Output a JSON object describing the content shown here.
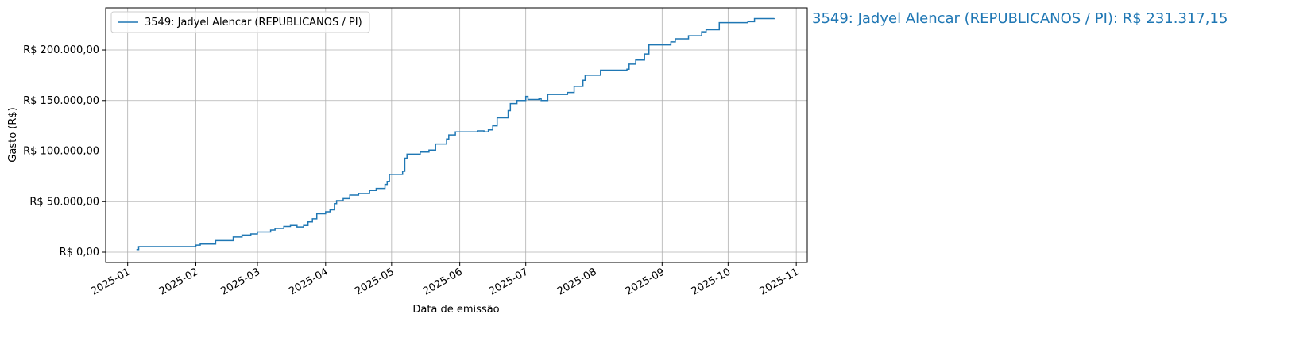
{
  "chart_data": {
    "type": "step",
    "xlabel": "Data de emissão",
    "ylabel": "Gasto (R$)",
    "annotation": "3549: Jadyel Alencar (REPUBLICANOS / PI): R$ 231.317,15",
    "grid": true,
    "legend": "upper left",
    "xlim": [
      "2024-12-22",
      "2025-11-06"
    ],
    "xticks": [
      "2025-01",
      "2025-02",
      "2025-03",
      "2025-04",
      "2025-05",
      "2025-06",
      "2025-07",
      "2025-08",
      "2025-09",
      "2025-10",
      "2025-11"
    ],
    "ylim": [
      -10200,
      241600
    ],
    "yticks": [
      {
        "value": 0,
        "label": "R$ 0,00"
      },
      {
        "value": 50000,
        "label": "R$ 50.000,00"
      },
      {
        "value": 100000,
        "label": "R$ 100.000,00"
      },
      {
        "value": 150000,
        "label": "R$ 150.000,00"
      },
      {
        "value": 200000,
        "label": "R$ 200.000,00"
      }
    ],
    "x": [
      "2025-01-05",
      "2025-01-06",
      "2025-02-01",
      "2025-02-03",
      "2025-02-10",
      "2025-02-18",
      "2025-02-22",
      "2025-02-26",
      "2025-03-01",
      "2025-03-07",
      "2025-03-09",
      "2025-03-13",
      "2025-03-16",
      "2025-03-19",
      "2025-03-22",
      "2025-03-24",
      "2025-03-26",
      "2025-03-28",
      "2025-04-01",
      "2025-04-03",
      "2025-04-05",
      "2025-04-06",
      "2025-04-09",
      "2025-04-12",
      "2025-04-16",
      "2025-04-21",
      "2025-04-24",
      "2025-04-28",
      "2025-04-29",
      "2025-04-30",
      "2025-05-06",
      "2025-05-07",
      "2025-05-08",
      "2025-05-14",
      "2025-05-18",
      "2025-05-21",
      "2025-05-26",
      "2025-05-27",
      "2025-05-30",
      "2025-06-09",
      "2025-06-12",
      "2025-06-14",
      "2025-06-16",
      "2025-06-18",
      "2025-06-23",
      "2025-06-24",
      "2025-06-27",
      "2025-07-01",
      "2025-07-02",
      "2025-07-07",
      "2025-07-08",
      "2025-07-11",
      "2025-07-20",
      "2025-07-23",
      "2025-07-27",
      "2025-07-28",
      "2025-08-04",
      "2025-08-16",
      "2025-08-17",
      "2025-08-20",
      "2025-08-24",
      "2025-08-26",
      "2025-09-05",
      "2025-09-07",
      "2025-09-13",
      "2025-09-19",
      "2025-09-21",
      "2025-09-27",
      "2025-10-10",
      "2025-10-13",
      "2025-10-22"
    ],
    "series": [
      {
        "name": "3549: Jadyel Alencar (REPUBLICANOS / PI)",
        "color": "#1f77b4",
        "values": [
          2500,
          5500,
          7000,
          8000,
          11500,
          15000,
          17000,
          18000,
          20000,
          22000,
          23500,
          25500,
          26500,
          25000,
          26500,
          30000,
          33000,
          38000,
          40000,
          42000,
          48000,
          51000,
          53000,
          56500,
          58000,
          61000,
          63000,
          67000,
          70000,
          77000,
          80000,
          93000,
          97000,
          99000,
          101000,
          107000,
          112000,
          116000,
          119000,
          120000,
          119000,
          121000,
          125000,
          133000,
          140000,
          147000,
          150000,
          154000,
          151000,
          152000,
          150000,
          156000,
          158000,
          164000,
          170000,
          175000,
          180000,
          181000,
          186000,
          190000,
          196000,
          205000,
          208000,
          211000,
          214000,
          218000,
          220000,
          227000,
          228000,
          231000,
          231317.15
        ]
      }
    ]
  }
}
